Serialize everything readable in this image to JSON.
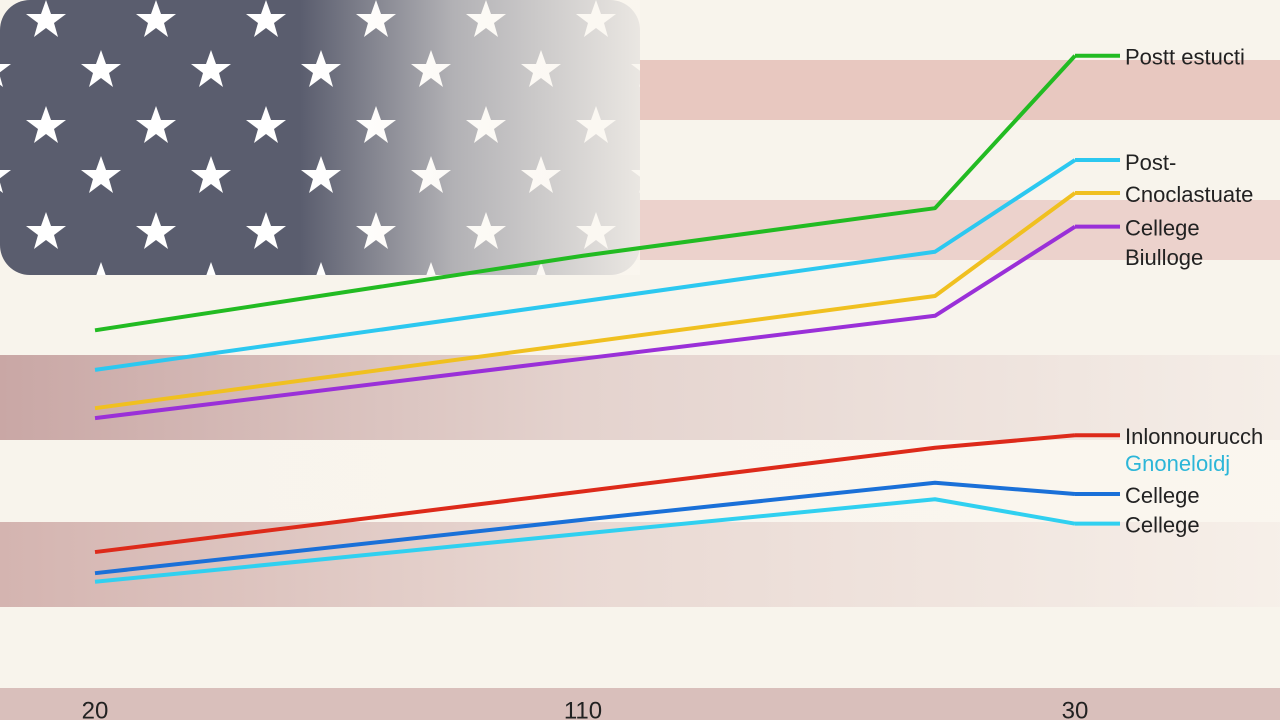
{
  "chart_data": {
    "type": "line",
    "categories": [
      "20",
      "110",
      null,
      "30"
    ],
    "series": [
      {
        "name": "Postt estucti",
        "color": "#22bb22",
        "values": [
          54.5,
          65.8,
          73.0,
          96.1
        ]
      },
      {
        "name": "Post-",
        "color": "#2cc8f0",
        "values": [
          48.5,
          58.9,
          66.4,
          80.3
        ]
      },
      {
        "name": "Cnoclastuate",
        "color": "#f0c020",
        "values": [
          42.7,
          52.6,
          59.7,
          75.3
        ]
      },
      {
        "name": "Cellege",
        "color": "#9a30d8",
        "values": [
          41.2,
          50.2,
          56.7,
          70.2
        ]
      },
      {
        "name": "Inlonnourucch",
        "color": "#dd2a1a",
        "values": [
          20.9,
          30.1,
          36.7,
          38.6
        ]
      },
      {
        "name": "Cellege",
        "color": "#1a70d8",
        "values": [
          17.7,
          25.8,
          31.4,
          29.7
        ]
      },
      {
        "name": "Cellege",
        "color": "#30d0f0",
        "values": [
          16.4,
          23.7,
          28.9,
          25.2
        ]
      }
    ],
    "annotations": [
      "Biulloge",
      "Gnoneloidj"
    ],
    "ylim": [
      0,
      100
    ]
  }
}
